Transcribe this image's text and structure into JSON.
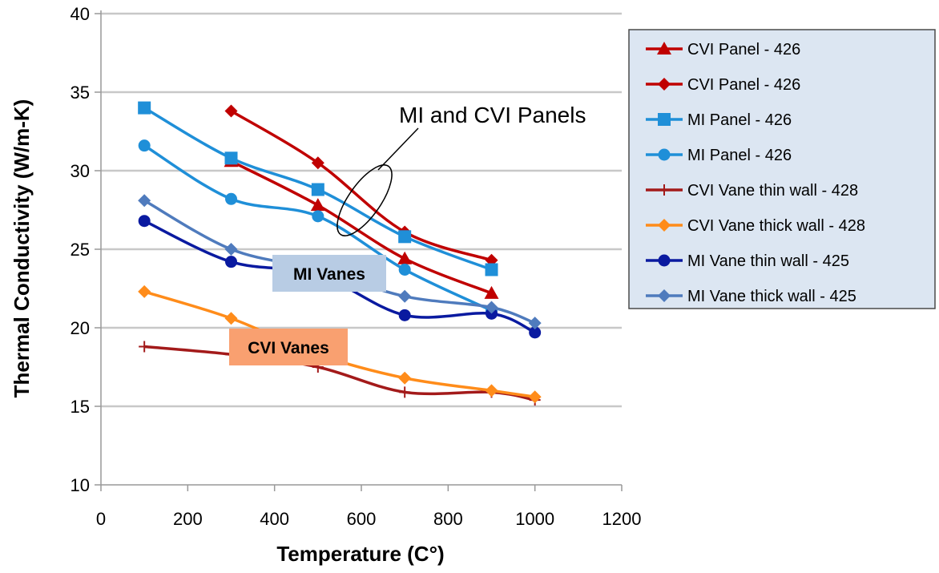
{
  "chart_data": {
    "type": "line",
    "xlabel": "Temperature (C°)",
    "ylabel": "Thermal Conductivity (W/m-K)",
    "xlim": [
      0,
      1200
    ],
    "ylim": [
      10,
      40
    ],
    "xticks": [
      0,
      200,
      400,
      600,
      800,
      1000,
      1200
    ],
    "yticks": [
      10,
      15,
      20,
      25,
      30,
      35,
      40
    ],
    "grid": "horizontal",
    "legend_position": "right",
    "series": [
      {
        "name": "CVI Panel - 426",
        "color": "#c00000",
        "marker": "triangle",
        "x": [
          300,
          500,
          700,
          900
        ],
        "y": [
          30.6,
          27.8,
          24.4,
          22.2
        ]
      },
      {
        "name": "CVI Panel - 426",
        "color": "#c00000",
        "marker": "diamond",
        "x": [
          300,
          500,
          700,
          900
        ],
        "y": [
          33.8,
          30.5,
          26.1,
          24.3
        ]
      },
      {
        "name": "MI Panel - 426",
        "color": "#1f8fd8",
        "marker": "square",
        "x": [
          100,
          300,
          500,
          700,
          900
        ],
        "y": [
          34.0,
          30.8,
          28.8,
          25.8,
          23.7
        ]
      },
      {
        "name": "MI Panel - 426",
        "color": "#1f8fd8",
        "marker": "circle",
        "x": [
          100,
          300,
          500,
          700,
          900
        ],
        "y": [
          31.6,
          28.2,
          27.1,
          23.7,
          21.1
        ]
      },
      {
        "name": "CVI Vane thin wall - 428",
        "color": "#a31a1a",
        "marker": "plus",
        "x": [
          100,
          300,
          500,
          700,
          900,
          1000
        ],
        "y": [
          18.8,
          18.3,
          17.5,
          15.9,
          15.9,
          15.4
        ]
      },
      {
        "name": "CVI Vane thick wall - 428",
        "color": "#ff8c1a",
        "marker": "diamond",
        "x": [
          100,
          300,
          500,
          700,
          900,
          1000
        ],
        "y": [
          22.3,
          20.6,
          18.3,
          16.8,
          16.0,
          15.6
        ]
      },
      {
        "name": "MI Vane thin wall - 425",
        "color": "#0a1aa0",
        "marker": "circle",
        "x": [
          100,
          300,
          500,
          700,
          900,
          1000
        ],
        "y": [
          26.8,
          24.2,
          23.4,
          20.8,
          20.9,
          19.7
        ]
      },
      {
        "name": "MI Vane thick wall - 425",
        "color": "#4f7bbd",
        "marker": "diamond",
        "x": [
          100,
          300,
          500,
          700,
          900,
          1000
        ],
        "y": [
          28.1,
          25.0,
          23.7,
          22.0,
          21.3,
          20.3
        ]
      }
    ],
    "annotations": [
      {
        "text": "MI and CVI Panels"
      },
      {
        "text": "MI Vanes",
        "background": "#b8cce4"
      },
      {
        "text": "CVI Vanes",
        "background": "#f9a070"
      }
    ]
  }
}
